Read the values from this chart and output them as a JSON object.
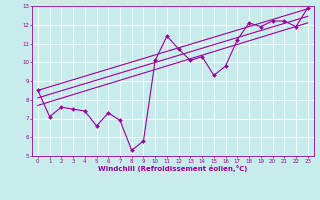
{
  "xlabel": "Windchill (Refroidissement éolien,°C)",
  "ylabel": "",
  "xlim": [
    -0.5,
    23.5
  ],
  "ylim": [
    5,
    13
  ],
  "xticks": [
    0,
    1,
    2,
    3,
    4,
    5,
    6,
    7,
    8,
    9,
    10,
    11,
    12,
    13,
    14,
    15,
    16,
    17,
    18,
    19,
    20,
    21,
    22,
    23
  ],
  "yticks": [
    5,
    6,
    7,
    8,
    9,
    10,
    11,
    12,
    13
  ],
  "bg_color": "#c8ecec",
  "grid_color": "#ffffff",
  "line_color": "#990099",
  "marker_color": "#990099",
  "data_x": [
    0,
    1,
    2,
    3,
    4,
    5,
    6,
    7,
    8,
    9,
    10,
    11,
    12,
    13,
    14,
    15,
    16,
    17,
    18,
    19,
    20,
    21,
    22,
    23
  ],
  "data_y": [
    8.5,
    7.1,
    7.6,
    7.5,
    7.4,
    6.6,
    7.3,
    6.9,
    5.3,
    5.8,
    10.1,
    11.4,
    10.7,
    10.1,
    10.3,
    9.3,
    9.8,
    11.2,
    12.1,
    11.9,
    12.2,
    12.2,
    11.9,
    12.9
  ],
  "trend_lines": [
    {
      "x0": 0,
      "y0": 8.5,
      "x1": 23,
      "y1": 12.85
    },
    {
      "x0": 0,
      "y0": 8.1,
      "x1": 23,
      "y1": 12.45
    },
    {
      "x0": 0,
      "y0": 7.7,
      "x1": 23,
      "y1": 12.1
    }
  ],
  "tick_fontsize": 4,
  "xlabel_fontsize": 5,
  "line_width": 0.8,
  "marker_size": 2.0
}
